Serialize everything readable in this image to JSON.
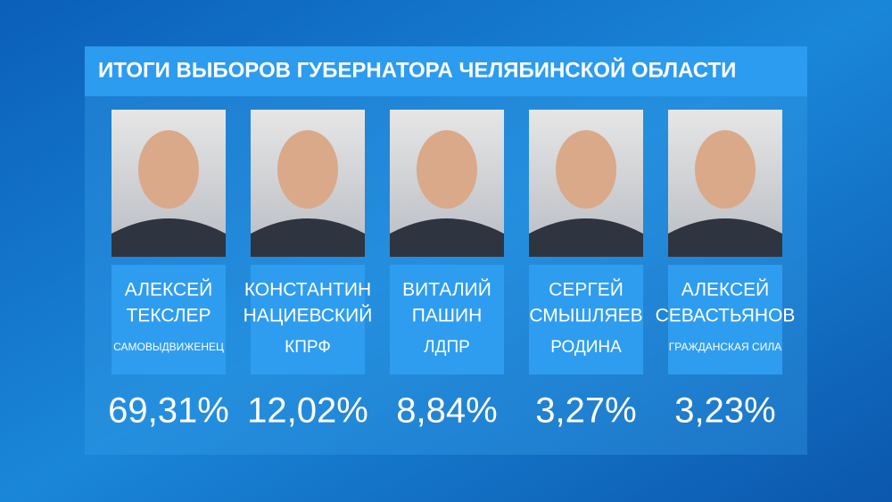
{
  "header": {
    "title": "ИТОГИ ВЫБОРОВ ГУБЕРНАТОРА ЧЕЛЯБИНСКОЙ ОБЛАСТИ"
  },
  "candidates": [
    {
      "first_name": "АЛЕКСЕЙ",
      "last_name": "ТЕКСЛЕР",
      "party": "САМОВЫДВИЖЕНЕЦ",
      "result": "69,31%"
    },
    {
      "first_name": "КОНСТАНТИН",
      "last_name": "НАЦИЕВСКИЙ",
      "party": "КПРФ",
      "result": "12,02%"
    },
    {
      "first_name": "ВИТАЛИЙ",
      "last_name": "ПАШИН",
      "party": "ЛДПР",
      "result": "8,84%"
    },
    {
      "first_name": "СЕРГЕЙ",
      "last_name": "СМЫШЛЯЕВ",
      "party": "РОДИНА",
      "result": "3,27%"
    },
    {
      "first_name": "АЛЕКСЕЙ",
      "last_name": "СЕВАСТЬЯНОВ",
      "party": "ГРАЖДАНСКАЯ СИЛА",
      "result": "3,23%"
    }
  ]
}
